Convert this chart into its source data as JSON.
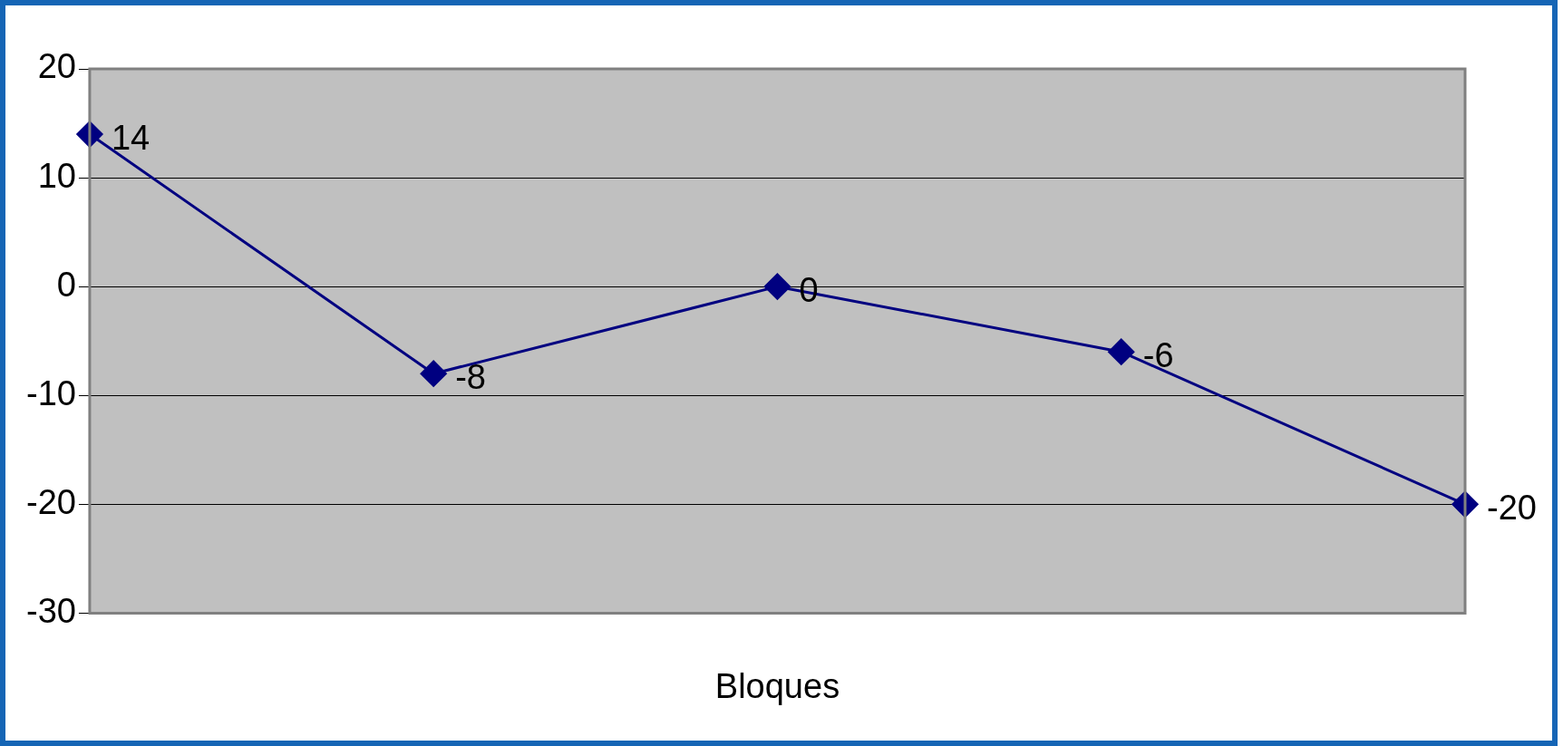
{
  "chart_data": {
    "type": "line",
    "xlabel": "Bloques",
    "categories": [
      null,
      null,
      null,
      null,
      null
    ],
    "series": [
      {
        "color": "#000080",
        "values": [
          14,
          -8,
          0,
          -6,
          -20
        ]
      }
    ],
    "ylim": [
      -30,
      20
    ],
    "yticks": [
      -30,
      -20,
      -10,
      0,
      10,
      20
    ],
    "grid": "y",
    "legend": false,
    "marker": "diamond",
    "line_style": "solid",
    "data_labels": true
  }
}
